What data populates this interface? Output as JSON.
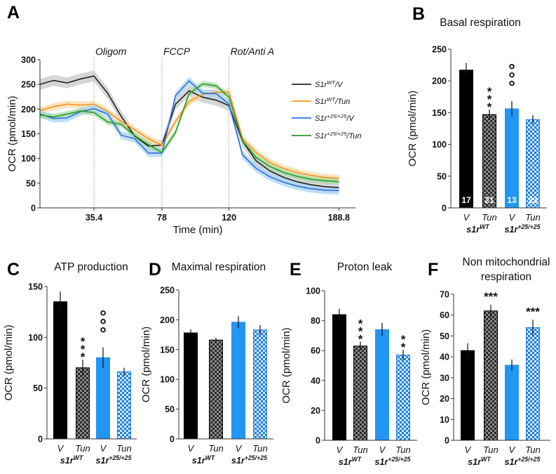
{
  "chart_data": [
    {
      "panel": "A",
      "type": "line",
      "ylabel": "OCR (pmol/min)",
      "xlabel": "Time (min)",
      "ylim": [
        0,
        300
      ],
      "yticks": [
        "0",
        "50",
        "100",
        "150",
        "200",
        "250",
        "300"
      ],
      "xticks": [
        "35.4",
        "78",
        "120",
        "188.8"
      ],
      "injections": [
        {
          "time": 35.4,
          "label": "Oligom"
        },
        {
          "time": 78,
          "label": "FCCP"
        },
        {
          "time": 120,
          "label": "Rot/Anti A"
        }
      ],
      "x": [
        1.6,
        10.1,
        18.6,
        27,
        35.4,
        44,
        52.5,
        61,
        69.5,
        78,
        86.5,
        95,
        103.5,
        112,
        120,
        128.5,
        137,
        145.5,
        154,
        162.5,
        171,
        179.5,
        188.8
      ],
      "series": [
        {
          "name": {
            "base": "S1r",
            "sup": "WT",
            "suffix": "/V"
          },
          "color": "#222222",
          "band": "#c8c8c8",
          "values": [
            250,
            258,
            253,
            261,
            267,
            232,
            185,
            145,
            125,
            127,
            210,
            237,
            224,
            218,
            207,
            135,
            95,
            75,
            62,
            53,
            47,
            43,
            41
          ],
          "error": 11
        },
        {
          "name": {
            "base": "S1r",
            "sup": "WT",
            "suffix": "/Tun"
          },
          "color": "#f7941d",
          "band": "#fbd9a8",
          "values": [
            197,
            205,
            210,
            208,
            210,
            195,
            175,
            158,
            140,
            127,
            175,
            215,
            230,
            234,
            234,
            140,
            112,
            92,
            80,
            72,
            66,
            62,
            60
          ],
          "error": 7
        },
        {
          "name": {
            "base": "S1r",
            "sup": "+25/+25",
            "suffix": "/V"
          },
          "color": "#2f6fe0",
          "band": "#a9d4f5",
          "values": [
            190,
            181,
            182,
            195,
            201,
            190,
            147,
            140,
            111,
            111,
            227,
            257,
            232,
            231,
            210,
            107,
            80,
            63,
            52,
            44,
            39,
            36,
            35
          ],
          "error": 8
        },
        {
          "name": {
            "base": "S1r",
            "sup": "+25/+25",
            "suffix": "/Tun"
          },
          "color": "#2a9a2a",
          "band": "#a8dba8",
          "values": [
            188,
            184,
            190,
            196,
            193,
            174,
            169,
            146,
            128,
            112,
            153,
            231,
            251,
            247,
            224,
            136,
            102,
            84,
            72,
            64,
            58,
            55,
            53
          ],
          "error": 6
        }
      ],
      "legend": "right"
    },
    {
      "panel": "B",
      "type": "bar",
      "title": "Basal respiration",
      "ylabel": "OCR (pmol/min)",
      "ylim": [
        0,
        250
      ],
      "yticks": [
        "0",
        "50",
        "100",
        "150",
        "200",
        "250"
      ],
      "categories": [
        "V",
        "Tun",
        "V",
        "Tun"
      ],
      "groups": [
        {
          "base": "s1r",
          "sup": "WT"
        },
        {
          "base": "s1r",
          "sup": "+25/+25"
        }
      ],
      "values": [
        217,
        147,
        156,
        139
      ],
      "errors": [
        11,
        8,
        12,
        7
      ],
      "n": [
        "17",
        "21",
        "13",
        "23"
      ],
      "annotations": [
        {
          "bar": 1,
          "text": "***",
          "orient": "vertical"
        },
        {
          "bar": 2,
          "text": "°°°",
          "orient": "vertical"
        }
      ]
    },
    {
      "panel": "C",
      "type": "bar",
      "title": "ATP production",
      "ylabel": "OCR (pmol/min)",
      "ylim": [
        0,
        150
      ],
      "yticks": [
        "0",
        "50",
        "100",
        "150"
      ],
      "categories": [
        "V",
        "Tun",
        "V",
        "Tun"
      ],
      "groups": [
        {
          "base": "s1r",
          "sup": "WT"
        },
        {
          "base": "s1r",
          "sup": "+25/+25"
        }
      ],
      "values": [
        135,
        70,
        80,
        66
      ],
      "errors": [
        10,
        8,
        10,
        4
      ],
      "annotations": [
        {
          "bar": 1,
          "text": "***",
          "orient": "vertical"
        },
        {
          "bar": 2,
          "text": "°°°",
          "orient": "vertical"
        }
      ]
    },
    {
      "panel": "D",
      "type": "bar",
      "title": "Maximal respiration",
      "ylabel": "OCR (pmol/min)",
      "ylim": [
        0,
        250
      ],
      "yticks": [
        "0",
        "50",
        "100",
        "150",
        "200",
        "250"
      ],
      "categories": [
        "V",
        "Tun",
        "V",
        "Tun"
      ],
      "groups": [
        {
          "base": "s1r",
          "sup": "WT"
        },
        {
          "base": "s1r",
          "sup": "+25/+25"
        }
      ],
      "values": [
        178,
        166,
        196,
        183
      ],
      "errors": [
        6,
        4,
        10,
        8
      ],
      "annotations": []
    },
    {
      "panel": "E",
      "type": "bar",
      "title": "Proton leak",
      "ylabel": "OCR (pmol/min)",
      "ylim": [
        0,
        100
      ],
      "yticks": [
        "0",
        "20",
        "40",
        "60",
        "80",
        "100"
      ],
      "categories": [
        "V",
        "Tun",
        "V",
        "Tun"
      ],
      "groups": [
        {
          "base": "s1r",
          "sup": "WT"
        },
        {
          "base": "s1r",
          "sup": "+25/+25"
        }
      ],
      "values": [
        84,
        63,
        74,
        57
      ],
      "errors": [
        4,
        3,
        4.5,
        3.5
      ],
      "annotations": [
        {
          "bar": 1,
          "text": "***",
          "orient": "vertical"
        },
        {
          "bar": 3,
          "text": "**",
          "orient": "vertical"
        }
      ]
    },
    {
      "panel": "F",
      "type": "bar",
      "title": [
        "Non mitochondrial",
        "respiration"
      ],
      "ylabel": "OCR (pmol/min)",
      "ylim": [
        0,
        70
      ],
      "yticks": [
        "0",
        "10",
        "20",
        "30",
        "40",
        "50",
        "60",
        "70"
      ],
      "categories": [
        "V",
        "Tun",
        "V",
        "Tun"
      ],
      "groups": [
        {
          "base": "s1r",
          "sup": "WT"
        },
        {
          "base": "s1r",
          "sup": "+25/+25"
        }
      ],
      "values": [
        43,
        62,
        36,
        54
      ],
      "errors": [
        3.5,
        3,
        2.7,
        3.8
      ],
      "annotations": [
        {
          "bar": 1,
          "text": "***",
          "orient": "horizontal"
        },
        {
          "bar": 3,
          "text": "***",
          "orient": "horizontal"
        }
      ]
    }
  ],
  "bar_colors": {
    "wt": "#000000",
    "wt_check": [
      "#2b2b2b",
      "#8a8a8a"
    ],
    "mut": "#2196f3",
    "mut_check": [
      "#1e7fe0",
      "#cfe8fb"
    ]
  }
}
